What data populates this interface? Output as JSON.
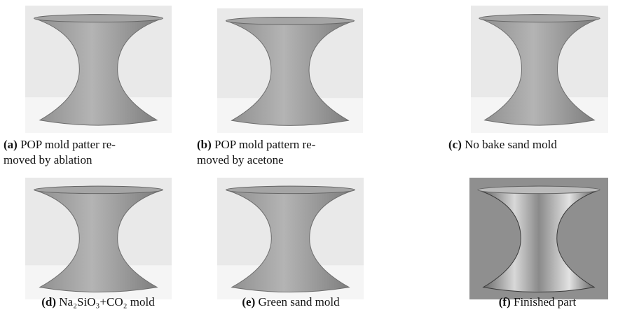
{
  "figure": {
    "panels": [
      {
        "label": "(a)",
        "lines": [
          "POP mold patter re-",
          "moved by ablation"
        ]
      },
      {
        "label": "(b)",
        "lines": [
          "POP mold pattern re-",
          "moved by acetone"
        ]
      },
      {
        "label": "(c)",
        "lines": [
          "No bake sand mold"
        ]
      },
      {
        "label": "(d)",
        "lines": [
          "Na₂SiO₃+CO₂ mold"
        ]
      },
      {
        "label": "(e)",
        "lines": [
          "Green sand mold"
        ]
      },
      {
        "label": "(f)",
        "lines": [
          "Finished part"
        ]
      }
    ]
  }
}
